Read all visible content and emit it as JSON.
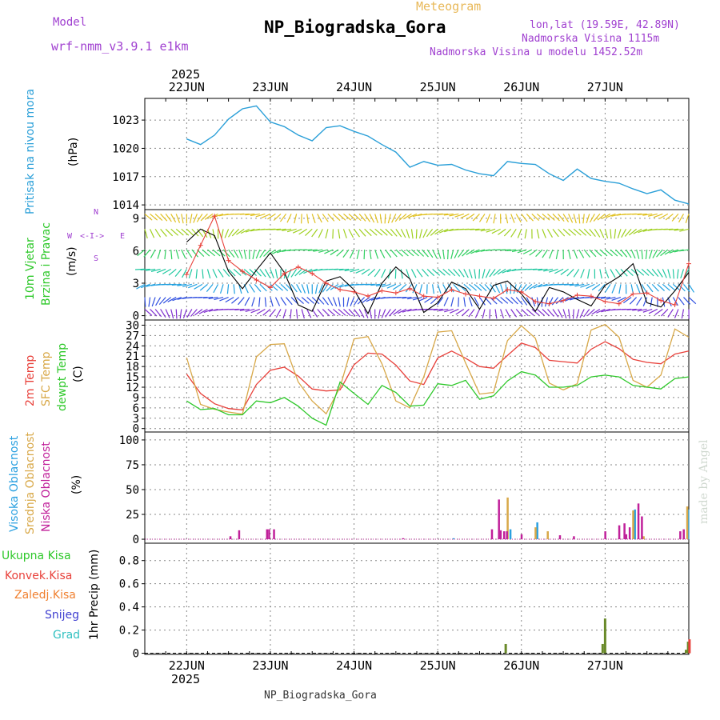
{
  "header": {
    "model_label": "Model",
    "model_name": "wrf-nmm_v3.9.1 e1km",
    "product": "Meteogram",
    "station": "NP_Biogradska_Gora",
    "coords": "lon,lat (19.59E, 42.89N)",
    "elevation": "Nadmorska Visina 1115m",
    "model_elevation": "Nadmorska Visina u modelu 1452.52m",
    "year_top": "2025",
    "year_bottom": "2025",
    "footer_station": "NP_Biogradska_Gora",
    "watermark": "made by Angel"
  },
  "colors": {
    "pressure": "#2a9fd8",
    "temp2m": "#e8403a",
    "sfc": "#d8a848",
    "dewpt": "#2ec82a",
    "cloud_high": "#2aa0e0",
    "cloud_mid": "#d8a848",
    "cloud_low": "#c0209a",
    "precip_total": "#2ec82a",
    "precip_conv": "#e8403a",
    "precip_frozen": "#f08030",
    "snow": "#4040d0",
    "hail": "#30c0c0",
    "wind_label": "#2ec82a",
    "compass": "#a040d0"
  },
  "chart_data": [
    {
      "type": "line",
      "panel": "pressure",
      "labels": [
        "Pritisak na nivou mora",
        "(hPa)"
      ],
      "ylim": [
        1013.5,
        1025.3
      ],
      "yticks": [
        1014,
        1017,
        1020,
        1023
      ],
      "x_days": [
        "22JUN",
        "23JUN",
        "24JUN",
        "25JUN",
        "26JUN",
        "27JUN"
      ],
      "x": [
        0,
        4,
        8,
        12,
        16,
        20,
        24,
        28,
        32,
        36,
        40,
        44,
        48,
        52,
        56,
        60,
        64,
        68,
        72,
        76,
        80,
        84,
        88,
        92,
        96,
        100,
        104,
        108,
        112,
        116,
        120,
        124,
        128,
        132,
        136,
        140,
        144
      ],
      "values": [
        1021.0,
        1020.4,
        1021.4,
        1023.1,
        1024.2,
        1024.5,
        1022.8,
        1022.3,
        1021.4,
        1020.8,
        1022.2,
        1022.4,
        1021.8,
        1021.3,
        1020.4,
        1019.6,
        1018.0,
        1018.6,
        1018.2,
        1018.3,
        1017.7,
        1017.3,
        1017.1,
        1018.6,
        1018.4,
        1018.3,
        1017.3,
        1016.6,
        1017.8,
        1016.8,
        1016.5,
        1016.3,
        1015.7,
        1015.2,
        1015.6,
        1014.5,
        1014.1
      ]
    },
    {
      "type": "vector",
      "panel": "wind",
      "labels": [
        "10m Vjetar",
        "Brzina i Pravac",
        "(m/s)"
      ],
      "compass": [
        "N",
        "W",
        "<-I->",
        "E",
        "S"
      ],
      "ylim": [
        -0.4,
        9.8
      ],
      "yticks": [
        0,
        3,
        6,
        9
      ],
      "speed_x": [
        0,
        4,
        8,
        12,
        16,
        20,
        24,
        28,
        32,
        36,
        40,
        44,
        48,
        52,
        56,
        60,
        64,
        68,
        72,
        76,
        80,
        84,
        88,
        92,
        96,
        100,
        104,
        108,
        112,
        116,
        120,
        124,
        128,
        132,
        136,
        140,
        144
      ],
      "speed": [
        3.8,
        6.5,
        9.2,
        5.1,
        4.1,
        3.3,
        2.6,
        3.9,
        4.5,
        3.9,
        3.0,
        2.4,
        2.2,
        1.8,
        2.3,
        2.1,
        2.5,
        1.8,
        1.7,
        2.4,
        2.0,
        1.8,
        1.6,
        2.4,
        2.2,
        1.3,
        1.1,
        1.4,
        1.9,
        1.8,
        1.3,
        1.1,
        2.0,
        2.1,
        1.4,
        1.0,
        4.8
      ],
      "gust": [
        6.8,
        8.0,
        7.4,
        4.1,
        2.5,
        4.2,
        5.8,
        4.0,
        1.0,
        0.4,
        3.2,
        3.6,
        2.4,
        0.2,
        3.0,
        4.5,
        3.4,
        0.3,
        1.2,
        3.1,
        2.5,
        0.6,
        2.8,
        3.2,
        2.0,
        0.4,
        2.6,
        2.2,
        1.5,
        0.9,
        2.8,
        3.6,
        4.8,
        1.2,
        0.8,
        2.3,
        4.0
      ]
    },
    {
      "type": "line",
      "panel": "temperature",
      "labels": [
        "2m Temp",
        "SFC Temp",
        "dewpt Temp",
        "(C)"
      ],
      "ylim": [
        -1,
        31.5
      ],
      "yticks": [
        0,
        3,
        6,
        9,
        12,
        15,
        18,
        21,
        24,
        27,
        30
      ],
      "x": [
        0,
        4,
        8,
        12,
        16,
        20,
        24,
        28,
        32,
        36,
        40,
        44,
        48,
        52,
        56,
        60,
        64,
        68,
        72,
        76,
        80,
        84,
        88,
        92,
        96,
        100,
        104,
        108,
        112,
        116,
        120,
        124,
        128,
        132,
        136,
        140,
        144
      ],
      "series": [
        {
          "name": "2m Temp",
          "values": [
            15.8,
            10.2,
            7.2,
            5.8,
            5.4,
            12.8,
            16.9,
            17.8,
            15.2,
            11.5,
            10.9,
            11.2,
            18.5,
            21.9,
            21.6,
            18.4,
            13.8,
            12.8,
            20.5,
            22.5,
            20.4,
            18.0,
            17.5,
            21.2,
            24.8,
            23.5,
            19.8,
            19.4,
            19.0,
            23.0,
            25.2,
            23.2,
            20.1,
            19.2,
            18.8,
            21.6,
            22.5
          ]
        },
        {
          "name": "SFC Temp",
          "values": [
            20.6,
            7.0,
            5.6,
            4.8,
            4.2,
            20.8,
            24.4,
            24.6,
            13.5,
            8.0,
            4.3,
            12.0,
            26.0,
            26.7,
            18.8,
            8.0,
            6.0,
            15.0,
            28.0,
            28.4,
            19.0,
            10.0,
            10.5,
            25.5,
            29.8,
            26.2,
            13.2,
            11.2,
            13.0,
            28.6,
            30.2,
            26.5,
            14.0,
            12.0,
            15.5,
            28.9,
            26.5
          ]
        },
        {
          "name": "dewpt Temp",
          "values": [
            8.0,
            5.5,
            5.8,
            4.0,
            4.0,
            8.0,
            7.5,
            9.0,
            6.5,
            3.0,
            1.0,
            13.5,
            10.2,
            7.0,
            12.5,
            10.5,
            6.5,
            6.8,
            13.0,
            12.5,
            14.0,
            8.5,
            9.5,
            13.8,
            16.5,
            15.5,
            12.0,
            12.0,
            12.5,
            15.0,
            15.5,
            15.0,
            12.5,
            12.0,
            11.5,
            14.5,
            15.0
          ]
        }
      ]
    },
    {
      "type": "bar",
      "panel": "clouds",
      "labels": [
        "Visoka Oblacnost",
        "Srednja Oblacnost",
        "Niska Oblacnost",
        "(%)"
      ],
      "ylim": [
        -4,
        108
      ],
      "yticks": [
        0,
        25,
        50,
        75,
        100
      ],
      "series": [
        {
          "name": "Visoka Oblacnost",
          "x": [
            76.5,
            92.8,
            100.5,
            128.5,
            143.8
          ],
          "values": [
            1,
            10,
            17,
            30,
            30
          ]
        },
        {
          "name": "Srednja Oblacnost",
          "x": [
            92.0,
            100.0,
            103.5,
            128.0,
            131.0,
            143.5
          ],
          "values": [
            42,
            12,
            8,
            29,
            3,
            33
          ]
        },
        {
          "name": "Niska Oblacnost",
          "x": [
            12.5,
            15.0,
            23.0,
            23.6,
            25.0,
            62.0,
            87.5,
            89.5,
            90.0,
            91.0,
            91.8,
            96.0,
            107.0,
            111.0,
            120.0,
            124.0,
            125.5,
            126.0,
            127.0,
            129.5,
            130.5,
            141.5,
            142.5
          ],
          "values": [
            3,
            9,
            10,
            10,
            10,
            1,
            10,
            40,
            9,
            8,
            8,
            5,
            4,
            3,
            8,
            14,
            16,
            5,
            12,
            36,
            23,
            8,
            10
          ]
        }
      ]
    },
    {
      "type": "bar",
      "panel": "precip",
      "labels": [
        "Ukupna Kisa",
        "Konvek.Kisa",
        "Zaledj.Kisa",
        "Snijeg",
        "Grad",
        "1hr Precip (mm)"
      ],
      "ylim": [
        -0.01,
        0.95
      ],
      "yticks": [
        0,
        0.2,
        0.4,
        0.6,
        0.8
      ],
      "series": [
        {
          "name": "Ukupna Kisa",
          "x": [
            91.5,
            119.3,
            120.0,
            143.2,
            143.8
          ],
          "values": [
            0.08,
            0.08,
            0.3,
            0.03,
            0.1
          ]
        },
        {
          "name": "Konvek.Kisa",
          "x": [
            144.2
          ],
          "values": [
            0.12
          ]
        }
      ]
    }
  ]
}
